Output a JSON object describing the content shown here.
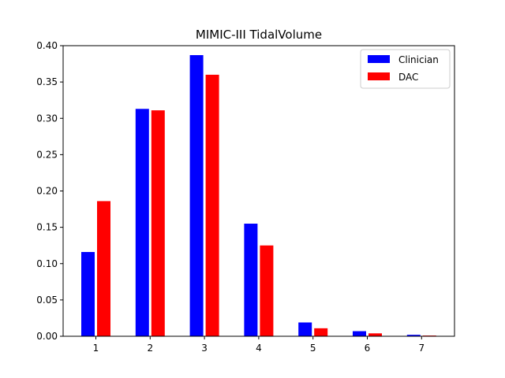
{
  "chart_data": {
    "type": "bar",
    "title": "MIMIC-III TidalVolume",
    "xlabel": "",
    "ylabel": "",
    "categories": [
      "1",
      "2",
      "3",
      "4",
      "5",
      "6",
      "7"
    ],
    "series": [
      {
        "name": "Clinician",
        "color": "#0000ff",
        "values": [
          0.116,
          0.313,
          0.387,
          0.155,
          0.019,
          0.007,
          0.002
        ]
      },
      {
        "name": "DAC",
        "color": "#ff0000",
        "values": [
          0.186,
          0.311,
          0.36,
          0.125,
          0.011,
          0.004,
          0.001
        ]
      }
    ],
    "ylim": [
      0,
      0.4
    ],
    "yticks": [
      "0.00",
      "0.05",
      "0.10",
      "0.15",
      "0.20",
      "0.25",
      "0.30",
      "0.35",
      "0.40"
    ],
    "grid": false,
    "legend_position": "top-right"
  }
}
